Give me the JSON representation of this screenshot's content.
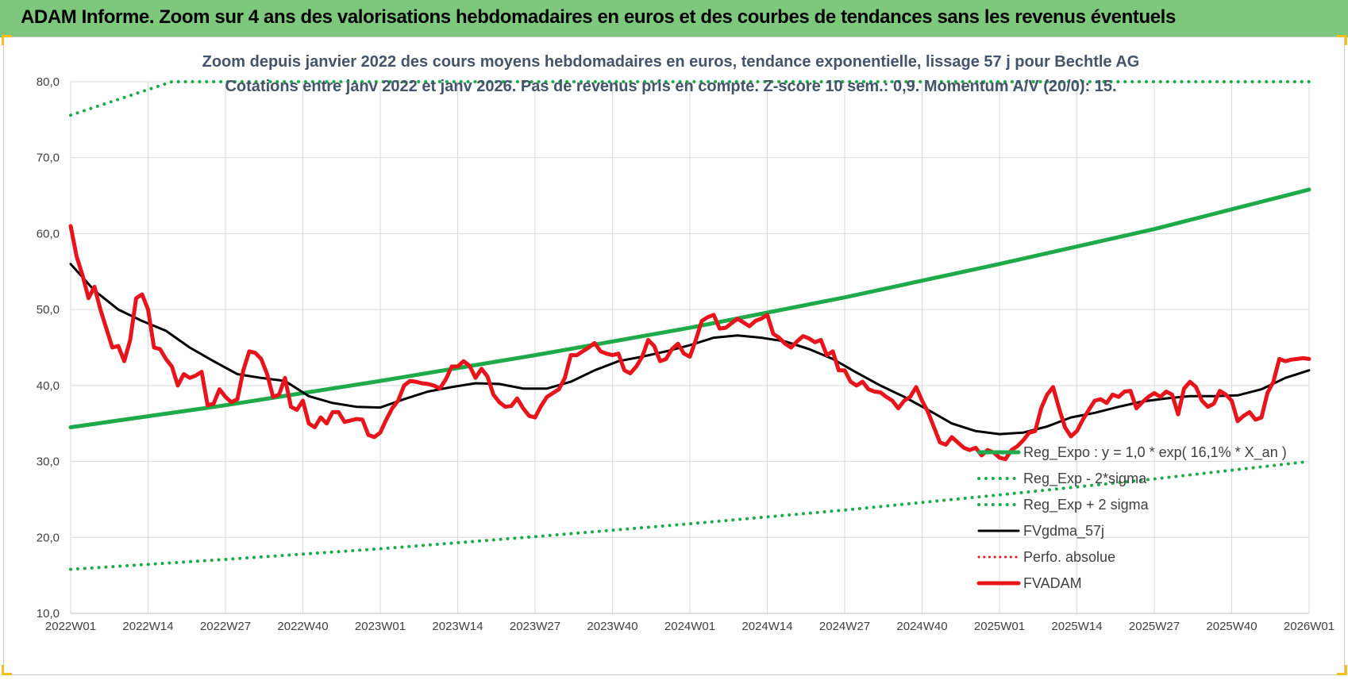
{
  "header": {
    "title": "ADAM Informe. Zoom sur 4 ans des valorisations hebdomadaires en euros et des courbes de tendances sans les revenus éventuels"
  },
  "chart_data": {
    "type": "line",
    "title": "Zoom depuis janvier 2022 des cours moyens hebdomadaires en euros, tendance exponentielle, lissage 57 j pour Bechtle AG",
    "subtitle": "Cotations entre janv 2022 et janv 2026. Pas de revenus pris en compte. Z-score 10 sem.: 0,9. Momentum A/V (20/0): 15.",
    "xlabel": "",
    "ylabel": "",
    "ylim": [
      10,
      80
    ],
    "yticks": [
      "10,0",
      "20,0",
      "30,0",
      "40,0",
      "50,0",
      "60,0",
      "70,0",
      "80,0"
    ],
    "x_tick_labels": [
      "2022W01",
      "2022W14",
      "2022W27",
      "2022W40",
      "2023W01",
      "2023W14",
      "2023W27",
      "2023W40",
      "2024W01",
      "2024W14",
      "2024W27",
      "2024W40",
      "2025W01",
      "2025W14",
      "2025W27",
      "2025W40",
      "2026W01"
    ],
    "x_tick_index": [
      0,
      13,
      26,
      39,
      52,
      65,
      78,
      91,
      104,
      117,
      130,
      143,
      156,
      169,
      182,
      195,
      208
    ],
    "x_range": [
      0,
      208
    ],
    "grid": true,
    "legend_position": "bottom-right",
    "series": [
      {
        "name": "Reg_Expo : y = 1,0 * exp( 16,1% * X_an )",
        "color": "#1faa4a",
        "style": "solid",
        "width": 5,
        "points": [
          [
            0,
            34.5
          ],
          [
            26,
            37.4
          ],
          [
            52,
            40.6
          ],
          [
            78,
            44.0
          ],
          [
            104,
            47.6
          ],
          [
            130,
            51.6
          ],
          [
            156,
            56.0
          ],
          [
            182,
            60.6
          ],
          [
            208,
            65.8
          ]
        ]
      },
      {
        "name": "Reg_Exp - 2*sigma",
        "color": "#1faa4a",
        "style": "dotted",
        "width": 4,
        "points": [
          [
            0,
            75.6
          ],
          [
            17,
            80.0
          ],
          [
            208,
            80.0
          ]
        ]
      },
      {
        "name": "Reg_Exp + 2 sigma",
        "color": "#1faa4a",
        "style": "dotted",
        "width": 4,
        "points": [
          [
            0,
            15.8
          ],
          [
            26,
            17.1
          ],
          [
            52,
            18.5
          ],
          [
            78,
            20.1
          ],
          [
            104,
            21.8
          ],
          [
            130,
            23.6
          ],
          [
            156,
            25.6
          ],
          [
            182,
            27.7
          ],
          [
            208,
            30.0
          ]
        ]
      },
      {
        "name": "FVgdma_57j",
        "color": "#000000",
        "style": "solid",
        "width": 3,
        "points": [
          [
            0,
            56.0
          ],
          [
            4,
            52.5
          ],
          [
            8,
            50.0
          ],
          [
            12,
            48.5
          ],
          [
            16,
            47.2
          ],
          [
            20,
            45.0
          ],
          [
            24,
            43.2
          ],
          [
            28,
            41.5
          ],
          [
            32,
            41.0
          ],
          [
            36,
            40.6
          ],
          [
            40,
            38.6
          ],
          [
            44,
            37.7
          ],
          [
            48,
            37.2
          ],
          [
            52,
            37.1
          ],
          [
            56,
            38.2
          ],
          [
            60,
            39.2
          ],
          [
            64,
            39.8
          ],
          [
            68,
            40.3
          ],
          [
            72,
            40.2
          ],
          [
            76,
            39.6
          ],
          [
            80,
            39.6
          ],
          [
            84,
            40.5
          ],
          [
            88,
            42.0
          ],
          [
            92,
            43.2
          ],
          [
            96,
            43.8
          ],
          [
            100,
            44.5
          ],
          [
            104,
            45.3
          ],
          [
            108,
            46.3
          ],
          [
            112,
            46.6
          ],
          [
            116,
            46.3
          ],
          [
            120,
            45.8
          ],
          [
            124,
            44.8
          ],
          [
            128,
            43.5
          ],
          [
            132,
            41.7
          ],
          [
            136,
            40.0
          ],
          [
            140,
            38.5
          ],
          [
            144,
            36.8
          ],
          [
            148,
            35.0
          ],
          [
            152,
            34.0
          ],
          [
            156,
            33.6
          ],
          [
            160,
            33.8
          ],
          [
            164,
            34.6
          ],
          [
            168,
            35.8
          ],
          [
            172,
            36.4
          ],
          [
            176,
            37.2
          ],
          [
            180,
            37.9
          ],
          [
            184,
            38.3
          ],
          [
            188,
            38.6
          ],
          [
            192,
            38.6
          ],
          [
            196,
            38.7
          ],
          [
            200,
            39.5
          ],
          [
            204,
            41.0
          ],
          [
            208,
            42.0
          ]
        ]
      },
      {
        "name": "Perfo. absolue",
        "color": "#e8141b",
        "style": "dotted",
        "width": 3,
        "points": []
      },
      {
        "name": "FVADAM",
        "color": "#e8141b",
        "style": "solid",
        "width": 5,
        "points": [
          [
            0,
            61.0
          ],
          [
            1,
            57.0
          ],
          [
            2,
            54.5
          ],
          [
            3,
            51.5
          ],
          [
            4,
            53.0
          ],
          [
            5,
            50.0
          ],
          [
            6,
            47.5
          ],
          [
            7,
            45.0
          ],
          [
            8,
            45.2
          ],
          [
            9,
            43.2
          ],
          [
            10,
            46.0
          ],
          [
            11,
            51.5
          ],
          [
            12,
            52.0
          ],
          [
            13,
            50.0
          ],
          [
            14,
            45.0
          ],
          [
            15,
            44.8
          ],
          [
            16,
            43.5
          ],
          [
            17,
            42.5
          ],
          [
            18,
            40.0
          ],
          [
            19,
            41.5
          ],
          [
            20,
            41.0
          ],
          [
            21,
            41.3
          ],
          [
            22,
            41.8
          ],
          [
            23,
            37.4
          ],
          [
            24,
            37.6
          ],
          [
            25,
            39.5
          ],
          [
            26,
            38.5
          ],
          [
            27,
            37.8
          ],
          [
            28,
            38.2
          ],
          [
            29,
            42.0
          ],
          [
            30,
            44.5
          ],
          [
            31,
            44.3
          ],
          [
            32,
            43.5
          ],
          [
            33,
            41.5
          ],
          [
            34,
            38.5
          ],
          [
            35,
            38.8
          ],
          [
            36,
            41.0
          ],
          [
            37,
            37.2
          ],
          [
            38,
            36.8
          ],
          [
            39,
            38.0
          ],
          [
            40,
            35.0
          ],
          [
            41,
            34.5
          ],
          [
            42,
            35.8
          ],
          [
            43,
            35.0
          ],
          [
            44,
            36.5
          ],
          [
            45,
            36.5
          ],
          [
            46,
            35.2
          ],
          [
            47,
            35.4
          ],
          [
            48,
            35.6
          ],
          [
            49,
            35.5
          ],
          [
            50,
            33.5
          ],
          [
            51,
            33.2
          ],
          [
            52,
            33.8
          ],
          [
            53,
            35.5
          ],
          [
            54,
            37.0
          ],
          [
            55,
            38.0
          ],
          [
            56,
            40.0
          ],
          [
            57,
            40.6
          ],
          [
            58,
            40.5
          ],
          [
            59,
            40.3
          ],
          [
            60,
            40.2
          ],
          [
            61,
            40.0
          ],
          [
            62,
            39.6
          ],
          [
            63,
            40.8
          ],
          [
            64,
            42.5
          ],
          [
            65,
            42.5
          ],
          [
            66,
            43.2
          ],
          [
            67,
            42.6
          ],
          [
            68,
            41.0
          ],
          [
            69,
            42.2
          ],
          [
            70,
            41.2
          ],
          [
            71,
            38.8
          ],
          [
            72,
            37.8
          ],
          [
            73,
            37.2
          ],
          [
            74,
            37.3
          ],
          [
            75,
            38.3
          ],
          [
            76,
            37.0
          ],
          [
            77,
            36.0
          ],
          [
            78,
            35.8
          ],
          [
            79,
            37.3
          ],
          [
            80,
            38.5
          ],
          [
            81,
            39.0
          ],
          [
            82,
            39.5
          ],
          [
            83,
            41.0
          ],
          [
            84,
            44.0
          ],
          [
            85,
            44.0
          ],
          [
            86,
            44.5
          ],
          [
            87,
            45.0
          ],
          [
            88,
            45.6
          ],
          [
            89,
            44.5
          ],
          [
            90,
            44.2
          ],
          [
            91,
            44.0
          ],
          [
            92,
            44.2
          ],
          [
            93,
            42.0
          ],
          [
            94,
            41.6
          ],
          [
            95,
            42.5
          ],
          [
            96,
            43.8
          ],
          [
            97,
            46.0
          ],
          [
            98,
            45.2
          ],
          [
            99,
            43.2
          ],
          [
            100,
            43.5
          ],
          [
            101,
            44.8
          ],
          [
            102,
            45.5
          ],
          [
            103,
            44.2
          ],
          [
            104,
            43.8
          ],
          [
            105,
            46.0
          ],
          [
            106,
            48.5
          ],
          [
            107,
            49.0
          ],
          [
            108,
            49.3
          ],
          [
            109,
            47.5
          ],
          [
            110,
            47.6
          ],
          [
            111,
            48.2
          ],
          [
            112,
            48.8
          ],
          [
            113,
            48.3
          ],
          [
            114,
            47.8
          ],
          [
            115,
            48.5
          ],
          [
            116,
            48.8
          ],
          [
            117,
            49.3
          ],
          [
            118,
            46.8
          ],
          [
            119,
            46.3
          ],
          [
            120,
            45.5
          ],
          [
            121,
            45.0
          ],
          [
            122,
            45.8
          ],
          [
            123,
            46.5
          ],
          [
            124,
            46.2
          ],
          [
            125,
            45.7
          ],
          [
            126,
            46.0
          ],
          [
            127,
            44.0
          ],
          [
            128,
            44.5
          ],
          [
            129,
            42.0
          ],
          [
            130,
            42.0
          ],
          [
            131,
            40.5
          ],
          [
            132,
            40.0
          ],
          [
            133,
            40.5
          ],
          [
            134,
            39.5
          ],
          [
            135,
            39.2
          ],
          [
            136,
            39.1
          ],
          [
            137,
            38.5
          ],
          [
            138,
            38.0
          ],
          [
            139,
            37.0
          ],
          [
            140,
            38.0
          ],
          [
            141,
            38.5
          ],
          [
            142,
            39.8
          ],
          [
            143,
            38.0
          ],
          [
            144,
            36.5
          ],
          [
            145,
            34.5
          ],
          [
            146,
            32.5
          ],
          [
            147,
            32.2
          ],
          [
            148,
            33.2
          ],
          [
            149,
            32.5
          ],
          [
            150,
            31.8
          ],
          [
            151,
            31.5
          ],
          [
            152,
            31.8
          ],
          [
            153,
            30.8
          ],
          [
            154,
            31.5
          ],
          [
            155,
            31.2
          ],
          [
            156,
            30.5
          ],
          [
            157,
            30.3
          ],
          [
            158,
            31.5
          ],
          [
            159,
            32.0
          ],
          [
            160,
            32.8
          ],
          [
            161,
            33.8
          ],
          [
            162,
            34.0
          ],
          [
            163,
            37.0
          ],
          [
            164,
            38.8
          ],
          [
            165,
            39.8
          ],
          [
            166,
            37.0
          ],
          [
            167,
            34.5
          ],
          [
            168,
            33.3
          ],
          [
            169,
            34.0
          ],
          [
            170,
            35.5
          ],
          [
            171,
            36.8
          ],
          [
            172,
            38.0
          ],
          [
            173,
            38.2
          ],
          [
            174,
            37.7
          ],
          [
            175,
            38.8
          ],
          [
            176,
            38.5
          ],
          [
            177,
            39.2
          ],
          [
            178,
            39.3
          ],
          [
            179,
            37.0
          ],
          [
            180,
            37.8
          ],
          [
            181,
            38.5
          ],
          [
            182,
            39.0
          ],
          [
            183,
            38.5
          ],
          [
            184,
            39.2
          ],
          [
            185,
            38.8
          ],
          [
            186,
            36.2
          ],
          [
            187,
            39.6
          ],
          [
            188,
            40.5
          ],
          [
            189,
            39.8
          ],
          [
            190,
            38.0
          ],
          [
            191,
            37.2
          ],
          [
            192,
            37.6
          ],
          [
            193,
            39.3
          ],
          [
            194,
            38.8
          ],
          [
            195,
            38.0
          ],
          [
            196,
            35.3
          ],
          [
            197,
            36.0
          ],
          [
            198,
            36.5
          ],
          [
            199,
            35.5
          ],
          [
            200,
            35.8
          ],
          [
            201,
            39.0
          ],
          [
            202,
            40.5
          ],
          [
            203,
            43.5
          ],
          [
            204,
            43.2
          ],
          [
            205,
            43.4
          ],
          [
            206,
            43.5
          ],
          [
            207,
            43.6
          ],
          [
            208,
            43.5
          ]
        ]
      }
    ]
  }
}
